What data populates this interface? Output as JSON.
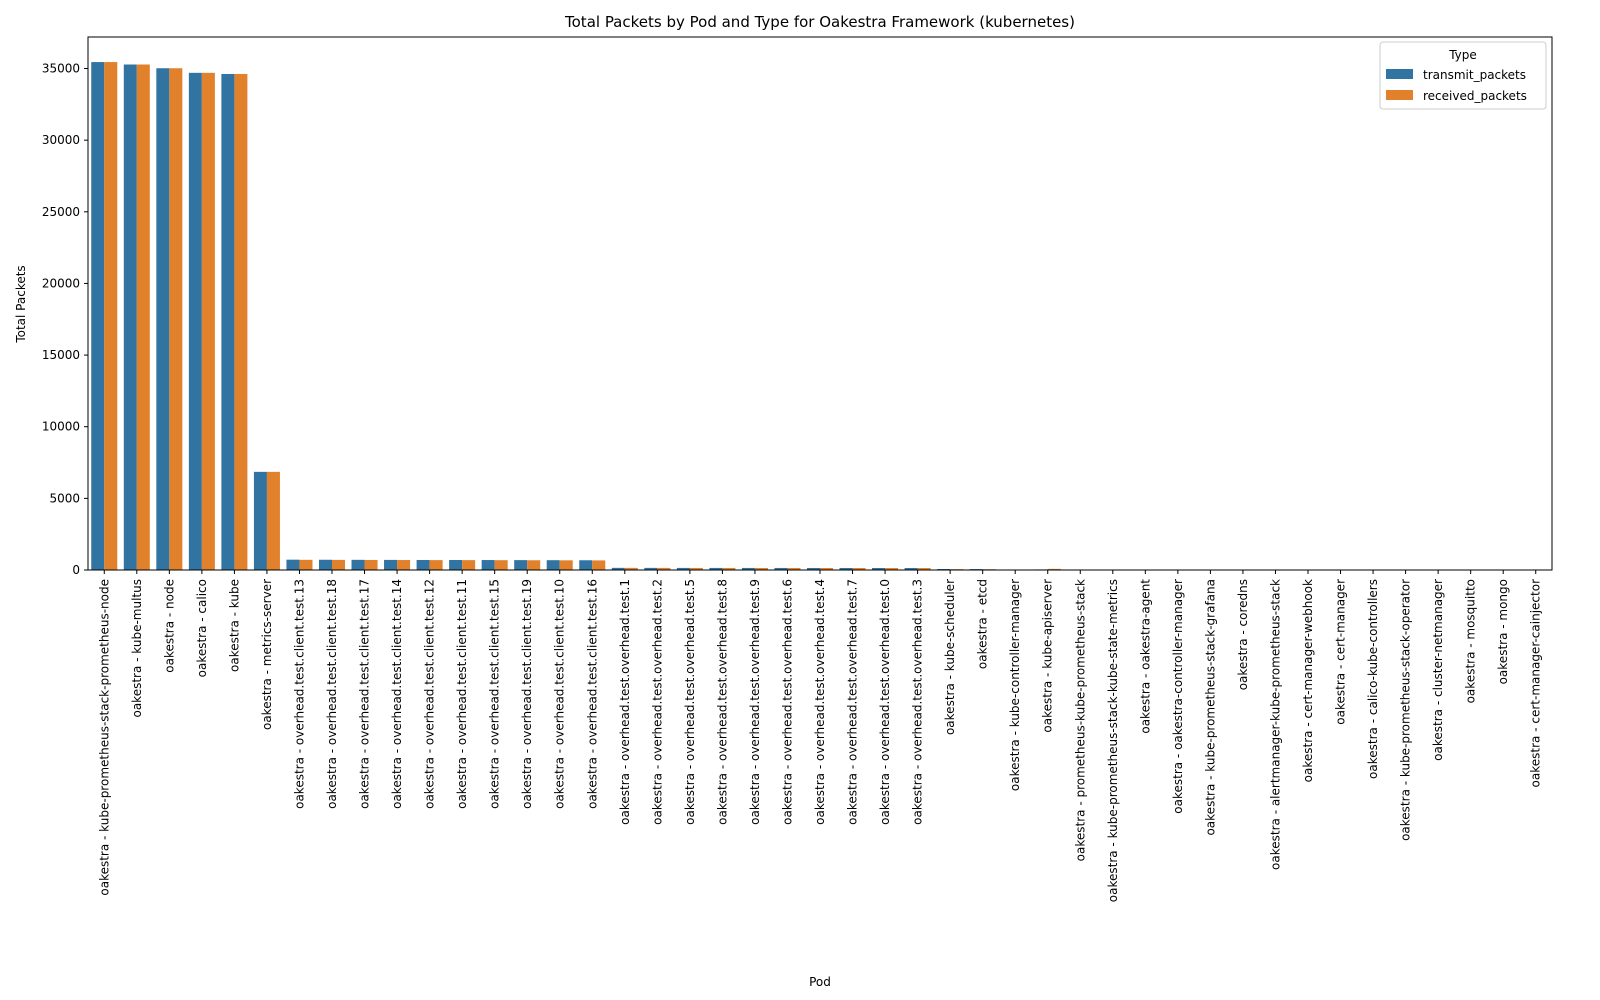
{
  "chart_data": {
    "type": "bar",
    "title": "Total Packets by Pod and Type for Oakestra Framework (kubernetes)",
    "xlabel": "Pod",
    "ylabel": "Total Packets",
    "ylim": [
      0,
      37200
    ],
    "yticks": [
      0,
      5000,
      10000,
      15000,
      20000,
      25000,
      30000,
      35000
    ],
    "grid": false,
    "legend": {
      "title": "Type",
      "position": "top-right"
    },
    "categories": [
      "oakestra - kube-prometheus-stack-prometheus-node",
      "oakestra - kube-multus",
      "oakestra - node",
      "oakestra - calico",
      "oakestra - kube",
      "oakestra - metrics-server",
      "oakestra - overhead.test.client.test.13",
      "oakestra - overhead.test.client.test.18",
      "oakestra - overhead.test.client.test.17",
      "oakestra - overhead.test.client.test.14",
      "oakestra - overhead.test.client.test.12",
      "oakestra - overhead.test.client.test.11",
      "oakestra - overhead.test.client.test.15",
      "oakestra - overhead.test.client.test.19",
      "oakestra - overhead.test.client.test.10",
      "oakestra - overhead.test.client.test.16",
      "oakestra - overhead.test.overhead.test.1",
      "oakestra - overhead.test.overhead.test.2",
      "oakestra - overhead.test.overhead.test.5",
      "oakestra - overhead.test.overhead.test.8",
      "oakestra - overhead.test.overhead.test.9",
      "oakestra - overhead.test.overhead.test.6",
      "oakestra - overhead.test.overhead.test.4",
      "oakestra - overhead.test.overhead.test.7",
      "oakestra - overhead.test.overhead.test.0",
      "oakestra - overhead.test.overhead.test.3",
      "oakestra - kube-scheduler",
      "oakestra - etcd",
      "oakestra - kube-controller-manager",
      "oakestra - kube-apiserver",
      "oakestra - prometheus-kube-prometheus-stack",
      "oakestra - kube-prometheus-stack-kube-state-metrics",
      "oakestra - oakestra-agent",
      "oakestra - oakestra-controller-manager",
      "oakestra - kube-prometheus-stack-grafana",
      "oakestra - coredns",
      "oakestra - alertmanager-kube-prometheus-stack",
      "oakestra - cert-manager-webhook",
      "oakestra - cert-manager",
      "oakestra - calico-kube-controllers",
      "oakestra - kube-prometheus-stack-operator",
      "oakestra - cluster-netmanager",
      "oakestra - mosquitto",
      "oakestra - mongo",
      "oakestra - cert-manager-cainjector"
    ],
    "series": [
      {
        "name": "transmit_packets",
        "color": "#3274a1",
        "values": [
          35450,
          35280,
          35020,
          34700,
          34620,
          6850,
          720,
          715,
          710,
          705,
          700,
          698,
          695,
          690,
          685,
          680,
          150,
          148,
          146,
          145,
          144,
          143,
          142,
          141,
          140,
          139,
          70,
          65,
          35,
          40,
          20,
          18,
          15,
          14,
          12,
          10,
          8,
          8,
          6,
          6,
          5,
          5,
          4,
          4,
          3
        ]
      },
      {
        "name": "received_packets",
        "color": "#e1812c",
        "values": [
          35450,
          35280,
          35020,
          34700,
          34620,
          6850,
          710,
          705,
          700,
          695,
          690,
          688,
          685,
          680,
          675,
          670,
          148,
          146,
          144,
          143,
          142,
          141,
          140,
          139,
          138,
          137,
          60,
          55,
          30,
          80,
          15,
          14,
          12,
          11,
          10,
          8,
          7,
          6,
          5,
          5,
          4,
          4,
          3,
          3,
          2
        ]
      }
    ]
  }
}
